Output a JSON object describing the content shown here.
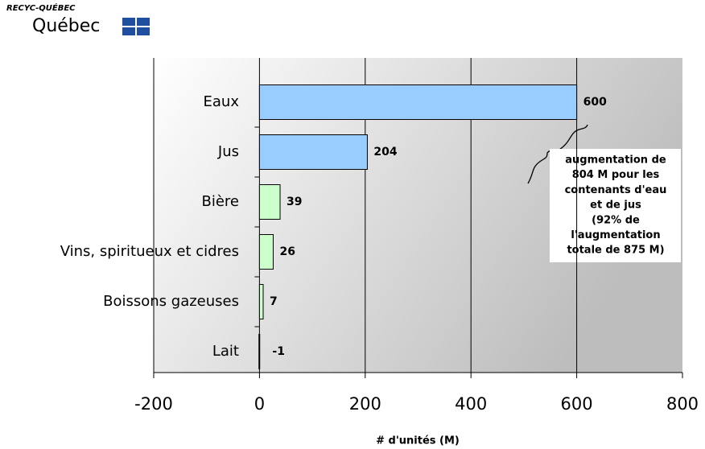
{
  "header": {
    "org": "RECYC-QUÉBEC",
    "brand": "Québec"
  },
  "chart_data": {
    "type": "bar",
    "orientation": "horizontal",
    "categories": [
      "Eaux",
      "Jus",
      "Bière",
      "Vins, spiritueux et cidres",
      "Boissons gazeuses",
      "Lait"
    ],
    "values": [
      600,
      204,
      39,
      26,
      7,
      -1
    ],
    "colors": [
      "#99ccff",
      "#99ccff",
      "#ccffcc",
      "#ccffcc",
      "#ccffcc",
      "#ccffcc"
    ],
    "xlim": [
      -200,
      800
    ],
    "xticks": [
      -200,
      0,
      200,
      400,
      600,
      800
    ],
    "grid": true,
    "xlabel": "# d'unités (M)",
    "annotation": [
      "augmentation de",
      "804 M pour les",
      "contenants d'eau",
      "et de jus",
      "(92% de",
      "l'augmentation",
      "totale de 875 M)"
    ]
  }
}
